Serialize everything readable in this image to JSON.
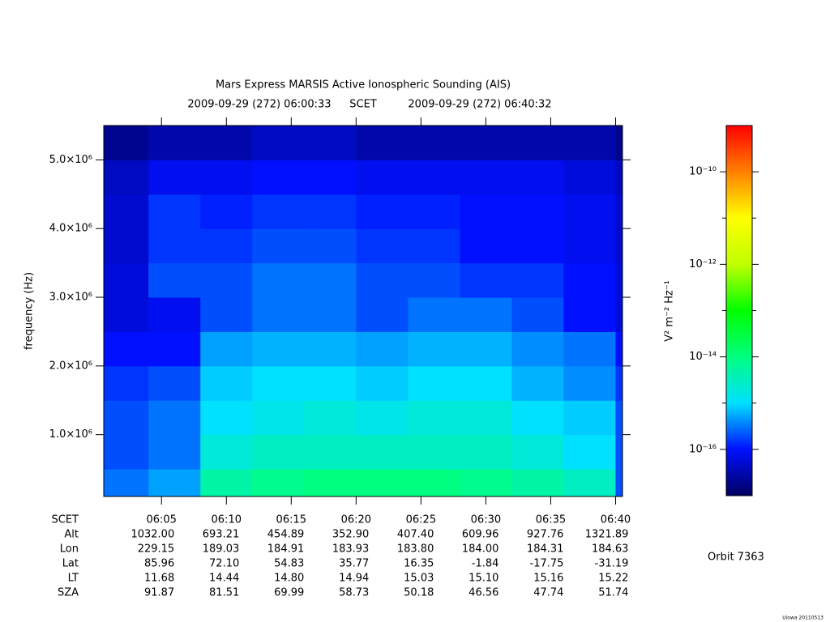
{
  "chart_data": {
    "type": "spectrogram",
    "title": "Mars Express MARSIS Active Ionospheric Sounding (AIS)",
    "time_range": [
      "2009-09-29 (272) 06:00:33",
      "2009-09-29 (272) 06:40:32"
    ],
    "xlabel": "SCET",
    "ylabel": "frequency (Hz)",
    "xticks": [
      "06:05",
      "06:10",
      "06:15",
      "06:20",
      "06:25",
      "06:30",
      "06:35",
      "06:40"
    ],
    "ylim": [
      100000,
      5500000
    ],
    "yticks": [
      {
        "value": 1000000,
        "label": "1.0×10⁶"
      },
      {
        "value": 2000000,
        "label": "2.0×10⁶"
      },
      {
        "value": 3000000,
        "label": "3.0×10⁶"
      },
      {
        "value": 4000000,
        "label": "4.0×10⁶"
      },
      {
        "value": 5000000,
        "label": "5.0×10⁶"
      }
    ],
    "x": [
      "06:02",
      "06:06",
      "06:10",
      "06:14",
      "06:18",
      "06:22",
      "06:26",
      "06:30",
      "06:34",
      "06:38",
      "06:42"
    ],
    "y": [
      250000,
      750000,
      1250000,
      1750000,
      2250000,
      2750000,
      3250000,
      3750000,
      4250000,
      4750000,
      5250000
    ],
    "values": [
      [
        3e-16,
        5e-16,
        5e-15,
        8e-15,
        1e-14,
        1e-14,
        1e-14,
        8e-15,
        5e-15,
        3e-15,
        2e-16
      ],
      [
        2e-16,
        3e-16,
        2e-15,
        3e-15,
        3e-15,
        3e-15,
        3e-15,
        3e-15,
        2e-15,
        1e-15,
        2e-16
      ],
      [
        2e-16,
        3e-16,
        1e-15,
        1.5e-15,
        2e-15,
        1.5e-15,
        2e-15,
        2e-15,
        1e-15,
        8e-16,
        2e-16
      ],
      [
        1.5e-16,
        2e-16,
        8e-16,
        1e-15,
        1e-15,
        8e-16,
        1e-15,
        1e-15,
        6e-16,
        4e-16,
        1.5e-16
      ],
      [
        1e-16,
        1e-16,
        5e-16,
        6e-16,
        6e-16,
        5e-16,
        6e-16,
        6e-16,
        4e-16,
        3e-16,
        1e-16
      ],
      [
        6e-17,
        8e-17,
        2e-16,
        3e-16,
        3e-16,
        2e-16,
        3e-16,
        3e-16,
        2e-16,
        1e-16,
        6e-17
      ],
      [
        6e-17,
        2e-16,
        2e-16,
        3e-16,
        3e-16,
        2e-16,
        2e-16,
        1.5e-16,
        1.5e-16,
        1e-16,
        6e-17
      ],
      [
        5e-17,
        1.5e-16,
        1.5e-16,
        2e-16,
        2e-16,
        1.5e-16,
        1.5e-16,
        1e-16,
        1e-16,
        8e-17,
        5e-17
      ],
      [
        5e-17,
        1.5e-16,
        1.2e-16,
        1.5e-16,
        1.5e-16,
        1.2e-16,
        1.2e-16,
        1e-16,
        1e-16,
        8e-17,
        5e-17
      ],
      [
        4e-17,
        8e-17,
        8e-17,
        1e-16,
        1e-16,
        8e-17,
        8e-17,
        8e-17,
        8e-17,
        6e-17,
        4e-17
      ],
      [
        2e-17,
        3e-17,
        3e-17,
        4e-17,
        4e-17,
        3e-17,
        3e-17,
        3e-17,
        3e-17,
        3e-17,
        2e-17
      ]
    ],
    "colorbar": {
      "label": "V² m⁻² Hz⁻¹",
      "log": true,
      "clim": [
        1e-17,
        1e-09
      ],
      "ticks": [
        {
          "value": 1e-10,
          "label": "10⁻¹⁰"
        },
        {
          "value": 1e-12,
          "label": "10⁻¹²"
        },
        {
          "value": 1e-14,
          "label": "10⁻¹⁴"
        },
        {
          "value": 1e-16,
          "label": "10⁻¹⁶"
        }
      ],
      "minor_ticks": [
        1e-11,
        1e-13,
        1e-15
      ],
      "colormap": [
        "#000060",
        "#0010ff",
        "#00e0ff",
        "#00ff80",
        "#00ff00",
        "#c0ff00",
        "#ffff00",
        "#ff8000",
        "#ff0000"
      ]
    },
    "ephemeris": {
      "rows": [
        {
          "label": "Alt",
          "values": [
            "1032.00",
            "693.21",
            "454.89",
            "352.90",
            "407.40",
            "609.96",
            "927.76",
            "1321.89"
          ]
        },
        {
          "label": "Lon",
          "values": [
            "229.15",
            "189.03",
            "184.91",
            "183.93",
            "183.80",
            "184.00",
            "184.31",
            "184.63"
          ]
        },
        {
          "label": "Lat",
          "values": [
            "85.96",
            "72.10",
            "54.83",
            "35.77",
            "16.35",
            "-1.84",
            "-17.75",
            "-31.19"
          ]
        },
        {
          "label": "LT",
          "values": [
            "11.68",
            "14.44",
            "14.80",
            "14.94",
            "15.03",
            "15.10",
            "15.16",
            "15.22"
          ]
        },
        {
          "label": "SZA",
          "values": [
            "91.87",
            "81.51",
            "69.99",
            "58.73",
            "50.18",
            "46.56",
            "47.74",
            "51.74"
          ]
        }
      ]
    },
    "orbit": "Orbit 7363",
    "footer": "Uiowa 20110513"
  }
}
